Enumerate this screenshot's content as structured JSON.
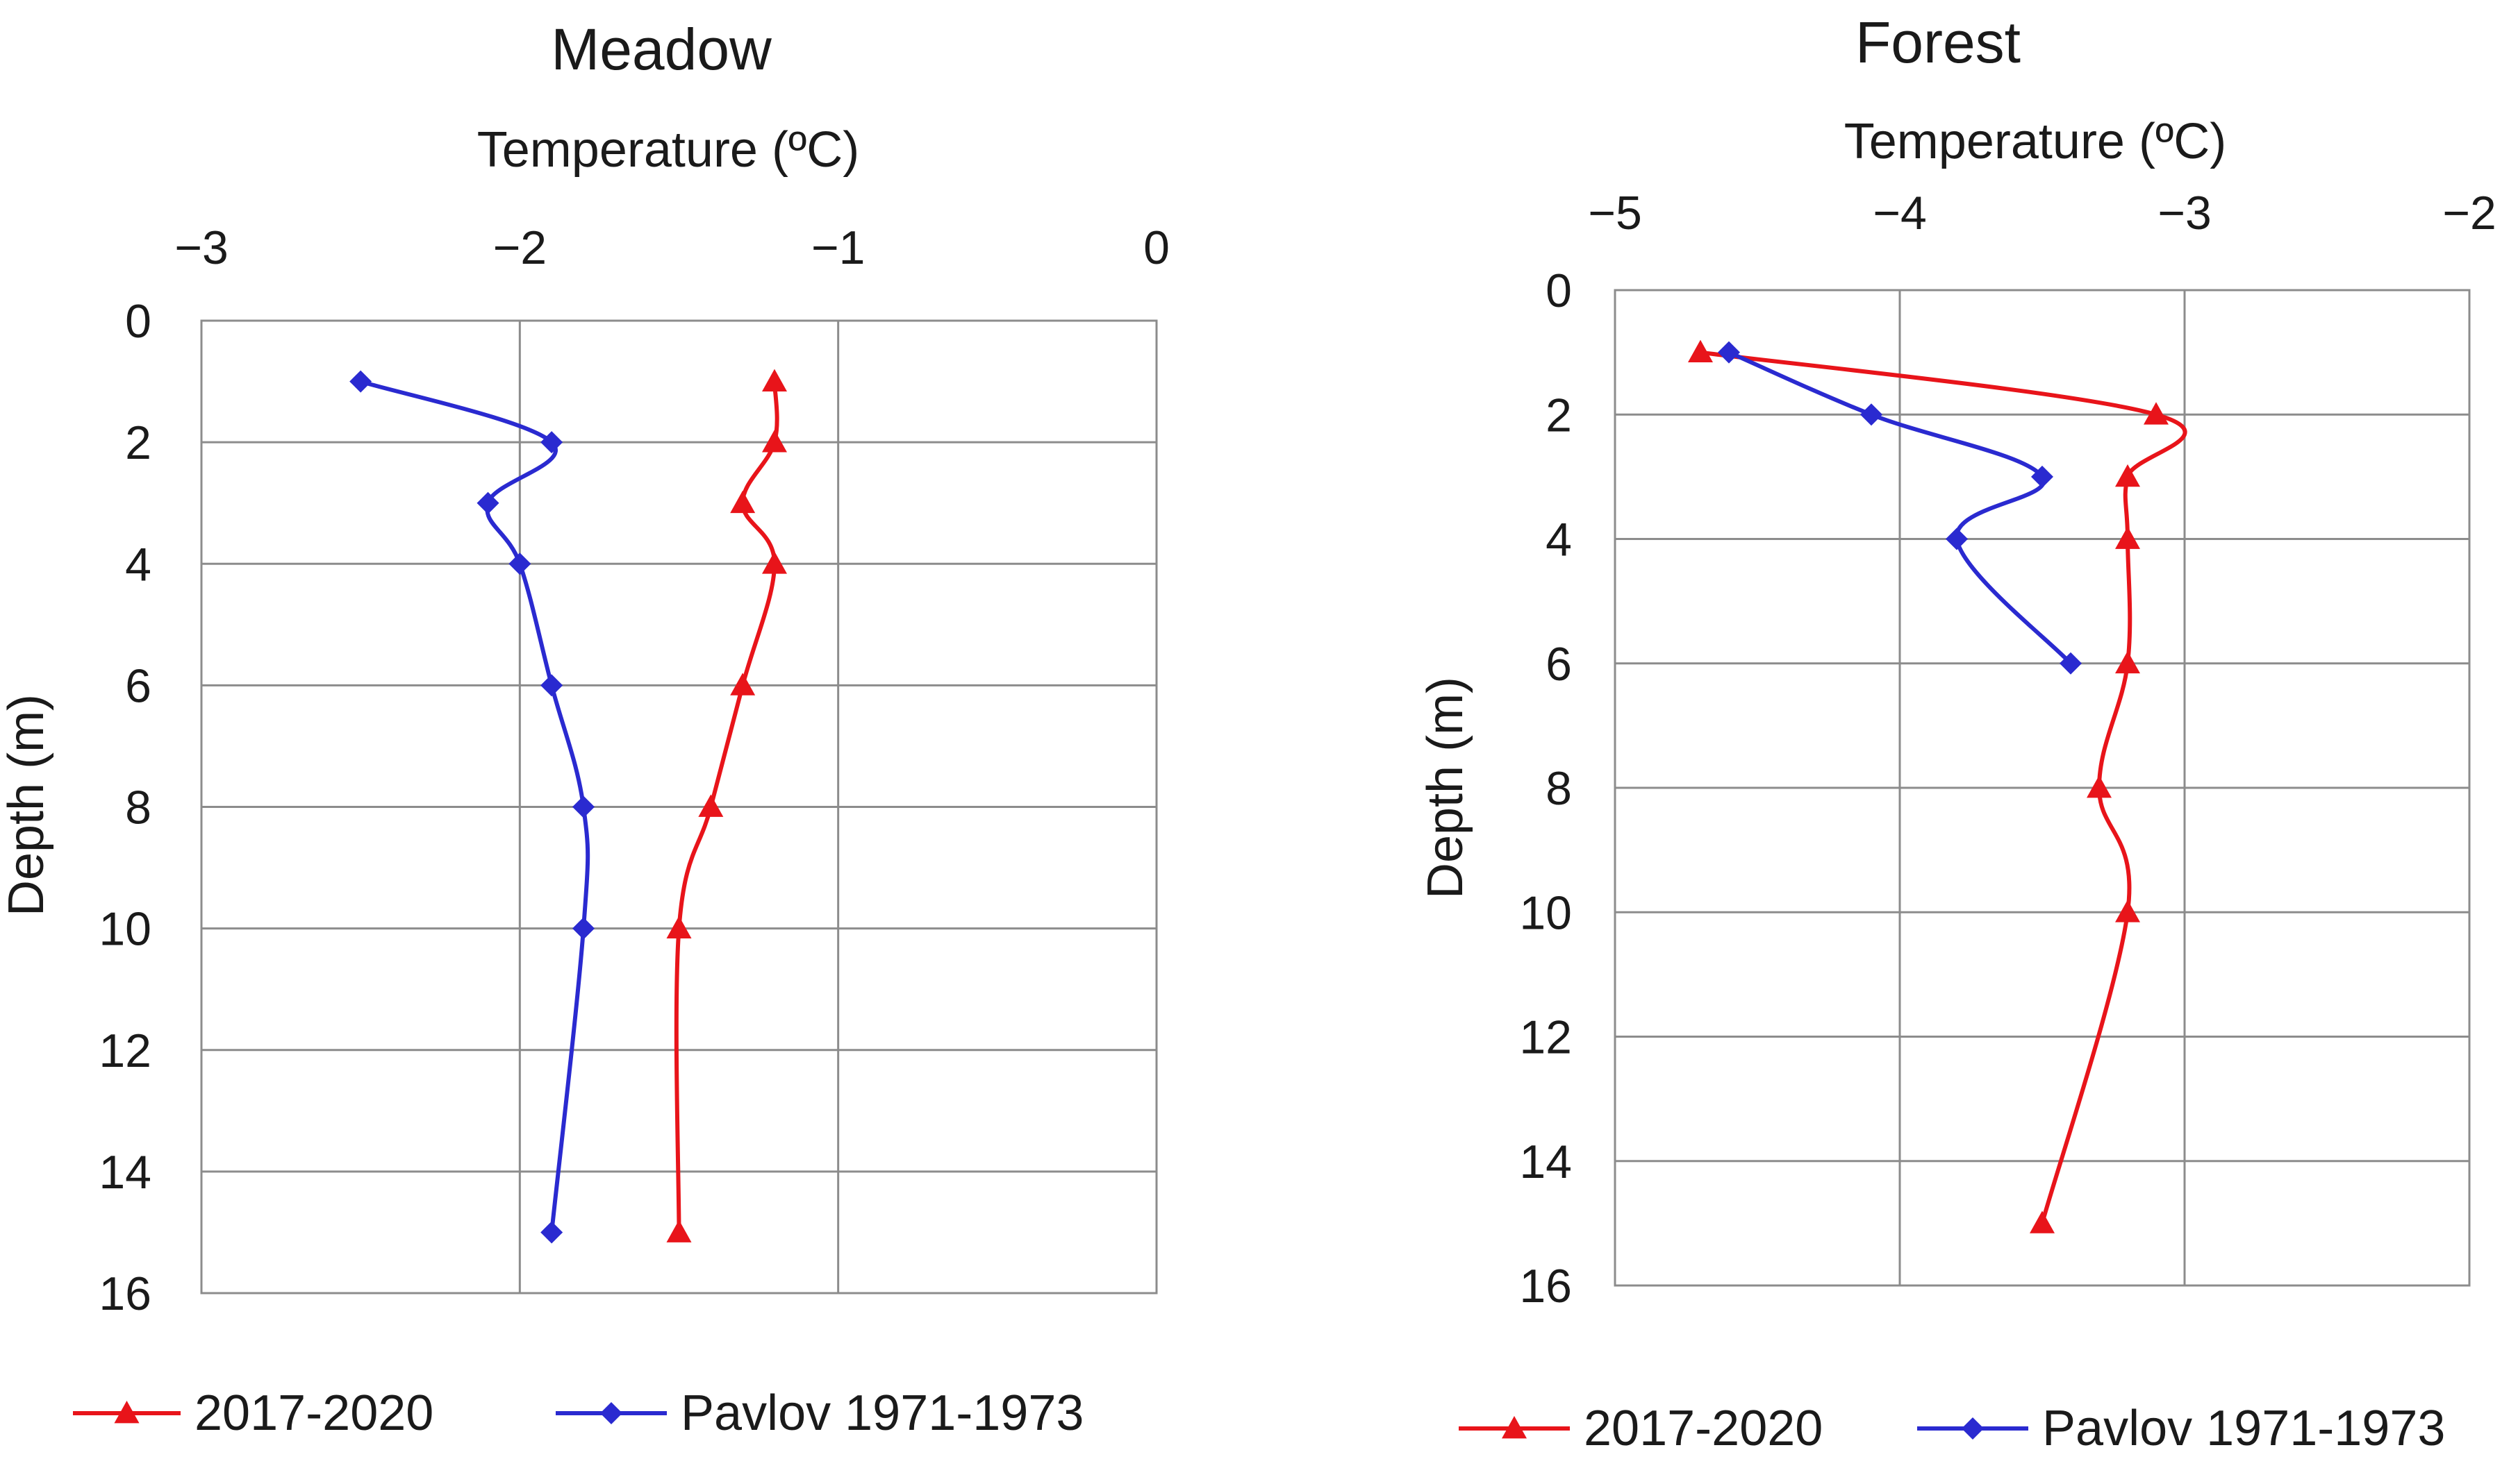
{
  "colors": {
    "series_2017": "#e8141a",
    "series_pavlov": "#2a2ad0",
    "grid": "#8c8c8c",
    "text": "#1a1a1a"
  },
  "chart_data": [
    {
      "id": "meadow",
      "type": "line",
      "title": "Meadow",
      "xlabel": "Temperature (ºC)",
      "ylabel": "Depth (m)",
      "xlim": [
        -3,
        0
      ],
      "ylim": [
        0,
        16
      ],
      "xticks": [
        -3,
        -2,
        -1,
        0
      ],
      "xtick_labels": [
        "−3",
        "−2",
        "−1",
        "0"
      ],
      "yticks": [
        0,
        2,
        4,
        6,
        8,
        10,
        12,
        14,
        16
      ],
      "ytick_labels": [
        "0",
        "2",
        "4",
        "6",
        "8",
        "10",
        "12",
        "14",
        "16"
      ],
      "grid": true,
      "legend_position": "bottom",
      "series": [
        {
          "name": "2017-2020",
          "marker": "triangle",
          "points": [
            [
              -1.2,
              1
            ],
            [
              -1.2,
              2
            ],
            [
              -1.3,
              3
            ],
            [
              -1.2,
              4
            ],
            [
              -1.3,
              6
            ],
            [
              -1.4,
              8
            ],
            [
              -1.5,
              10
            ],
            [
              -1.5,
              15
            ]
          ]
        },
        {
          "name": "Pavlov 1971-1973",
          "marker": "diamond",
          "points": [
            [
              -2.5,
              1
            ],
            [
              -1.9,
              2
            ],
            [
              -2.1,
              3
            ],
            [
              -2.0,
              4
            ],
            [
              -1.9,
              6
            ],
            [
              -1.8,
              8
            ],
            [
              -1.8,
              10
            ],
            [
              -1.9,
              15
            ]
          ]
        }
      ]
    },
    {
      "id": "forest",
      "type": "line",
      "title": "Forest",
      "xlabel": "Temperature (ºC)",
      "ylabel": "Depth (m)",
      "xlim": [
        -5,
        -2
      ],
      "ylim": [
        0,
        16
      ],
      "xticks": [
        -5,
        -4,
        -3,
        -2
      ],
      "xtick_labels": [
        "−5",
        "−4",
        "−3",
        "−2"
      ],
      "yticks": [
        0,
        2,
        4,
        6,
        8,
        10,
        12,
        14,
        16
      ],
      "ytick_labels": [
        "0",
        "2",
        "4",
        "6",
        "8",
        "10",
        "12",
        "14",
        "16"
      ],
      "grid": true,
      "legend_position": "bottom",
      "series": [
        {
          "name": "2017-2020",
          "marker": "triangle",
          "points": [
            [
              -4.7,
              1
            ],
            [
              -3.1,
              2
            ],
            [
              -3.2,
              3
            ],
            [
              -3.2,
              4
            ],
            [
              -3.2,
              6
            ],
            [
              -3.3,
              8
            ],
            [
              -3.2,
              10
            ],
            [
              -3.5,
              15
            ]
          ]
        },
        {
          "name": "Pavlov 1971-1973",
          "marker": "diamond",
          "points": [
            [
              -4.6,
              1
            ],
            [
              -4.1,
              2
            ],
            [
              -3.5,
              3
            ],
            [
              -3.8,
              4
            ],
            [
              -3.4,
              6
            ]
          ]
        }
      ]
    }
  ]
}
